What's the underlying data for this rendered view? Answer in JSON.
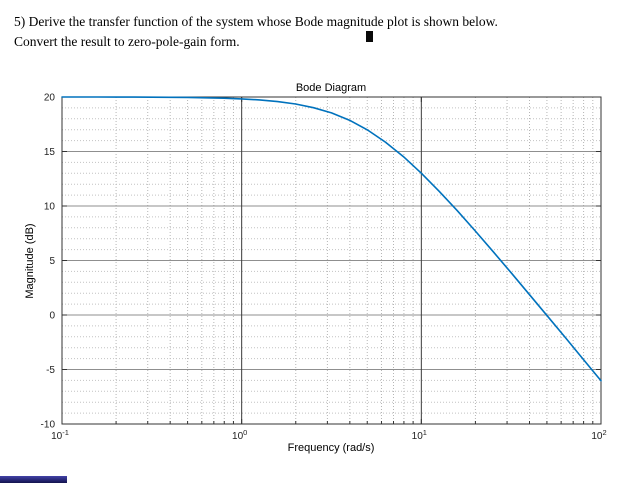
{
  "question": {
    "line1": "5) Derive the transfer function of the system whose Bode magnitude plot is shown below.",
    "line2": "Convert the result to zero-pole-gain form."
  },
  "chart_data": {
    "type": "line",
    "title": "Bode Diagram",
    "xlabel": "Frequency  (rad/s)",
    "ylabel": "Magnitude (dB)",
    "x_scale": "log",
    "xlim": [
      0.1,
      100
    ],
    "ylim": [
      -10,
      20
    ],
    "x_ticks": [
      0.1,
      1,
      10,
      100
    ],
    "x_tick_base": "10",
    "x_tick_exponents": [
      "-1",
      "0",
      "1",
      "2"
    ],
    "y_ticks": [
      -10,
      -5,
      0,
      5,
      10,
      15,
      20
    ],
    "grid": "on",
    "legend": "none",
    "line_color": "#0072BD",
    "series": [
      {
        "name": "magnitude",
        "x": [
          0.1,
          0.126,
          0.158,
          0.2,
          0.251,
          0.316,
          0.398,
          0.501,
          0.631,
          0.794,
          1,
          1.259,
          1.585,
          1.995,
          2.512,
          3.162,
          3.981,
          5.012,
          6.31,
          7.943,
          10,
          12.589,
          15.849,
          19.953,
          25.119,
          31.623,
          39.811,
          50.119,
          63.096,
          79.433,
          100
        ],
        "y": [
          20,
          20,
          20,
          19.99,
          19.99,
          19.98,
          19.97,
          19.96,
          19.93,
          19.89,
          19.83,
          19.73,
          19.58,
          19.36,
          19.02,
          18.54,
          17.87,
          16.98,
          15.86,
          14.53,
          13.01,
          11.34,
          9.57,
          7.72,
          5.81,
          3.87,
          1.91,
          -0.06,
          -2.05,
          -4.04,
          -6.03
        ]
      }
    ],
    "annotations": {
      "low_freq_gain_db": 20,
      "corner_freq_rad_s": 5,
      "slope_db_per_decade": -20
    }
  }
}
